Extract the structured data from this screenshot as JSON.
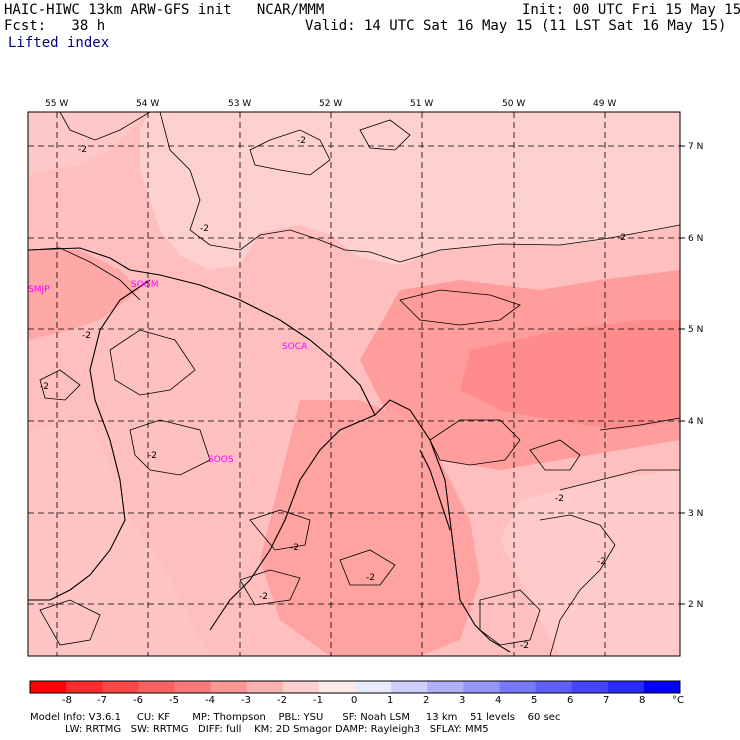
{
  "header": {
    "model_title": "HAIC-HIWC 13km ARW-GFS init   NCAR/MMM",
    "init": "Init: 00 UTC Fri 15 May 15",
    "fcst": "Fcst:   38 h",
    "valid": "Valid: 14 UTC Sat 16 May 15 (11 LST Sat 16 May 15)",
    "field": "Lifted index"
  },
  "axes": {
    "lon_labels": [
      "55 W",
      "54 W",
      "53 W",
      "52 W",
      "51 W",
      "50 W",
      "49 W"
    ],
    "lat_labels": [
      "7 N",
      "6 N",
      "5 N",
      "4 N",
      "3 N",
      "2 N"
    ]
  },
  "stations": [
    "SMJP",
    "SOGM",
    "SOCA",
    "SOOS"
  ],
  "contour_labels": [
    "-2"
  ],
  "colorbar": {
    "labels": [
      "-8",
      "-7",
      "-6",
      "-5",
      "-4",
      "-3",
      "-2",
      "-1",
      "0",
      "1",
      "2",
      "3",
      "4",
      "5",
      "6",
      "7",
      "8"
    ],
    "unit": "°C",
    "colors": [
      "#ff0000",
      "#ff2a2a",
      "#ff4545",
      "#ff5f5f",
      "#ff7878",
      "#ff9595",
      "#ffb0b0",
      "#ffcfcf",
      "#ffeaea",
      "#eaeaff",
      "#cfcfff",
      "#b0b0ff",
      "#9595ff",
      "#7878ff",
      "#5f5fff",
      "#4545ff",
      "#2a2aff",
      "#0000ff"
    ]
  },
  "footer": {
    "line1": "Model Info: V3.6.1     CU: KF       MP: Thompson    PBL: YSU      SF: Noah LSM     13 km    51 levels    60 sec",
    "line2": "           LW: RRTMG   SW: RRTMG   DIFF: full    KM: 2D Smagor DAMP: Rayleigh3   SFLAY: MM5"
  },
  "fill_colors": {
    "lightest": "#ffd0d0",
    "light": "#ffbcbc",
    "medium": "#ff9e9e",
    "strong": "#ff8888",
    "land_interior": "#ffb4b4"
  }
}
